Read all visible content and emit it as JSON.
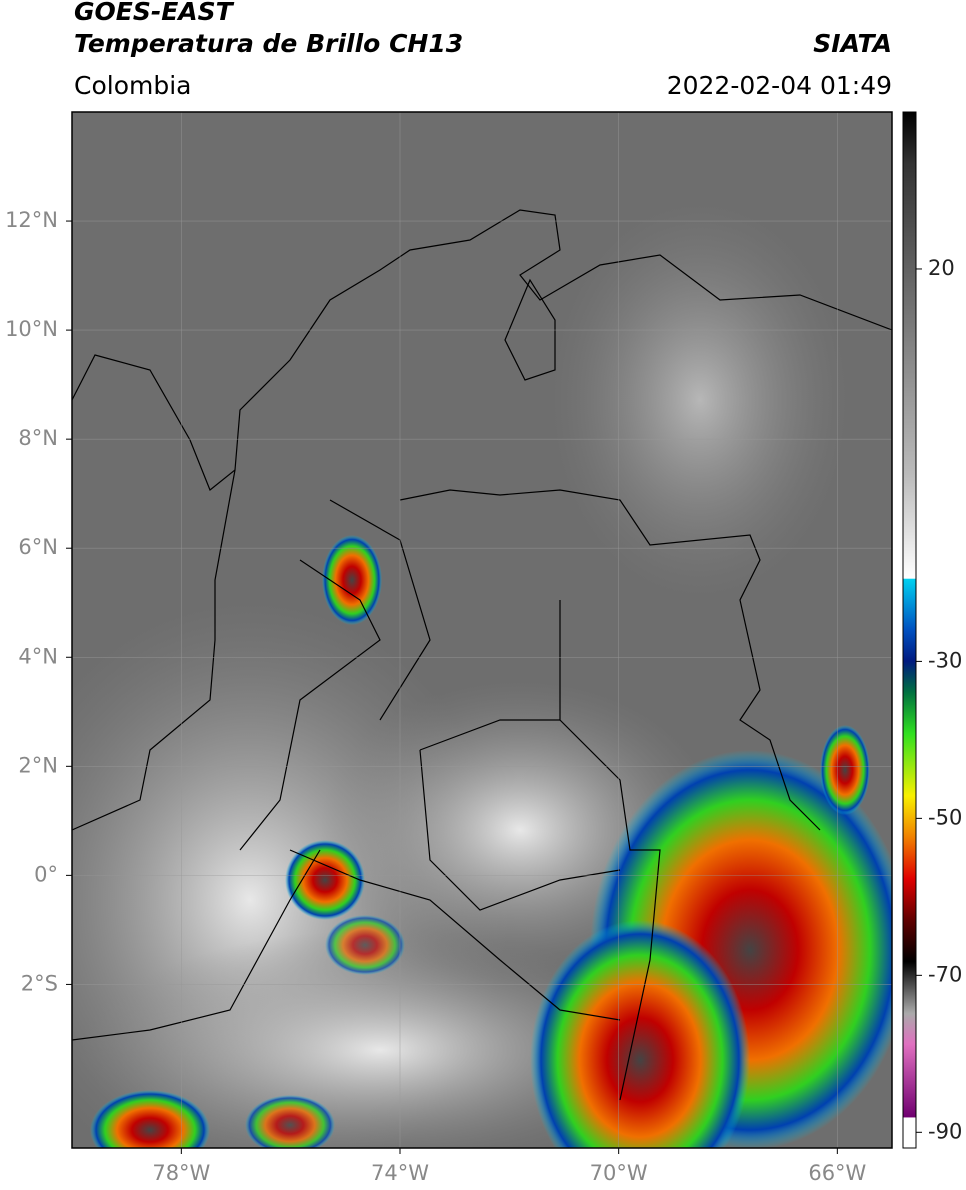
{
  "map": {
    "title": "GOES-EAST",
    "subtitle": "Temperatura de Brillo CH13",
    "region": "Colombia",
    "source": "SIATA",
    "timestamp": "2022-02-04 01:49",
    "lat_lim": [
      -5,
      14
    ],
    "lat_ticks": [
      {
        "value": 12,
        "label": "12°N"
      },
      {
        "value": 10,
        "label": "10°N"
      },
      {
        "value": 8,
        "label": "8°N"
      },
      {
        "value": 6,
        "label": "6°N"
      },
      {
        "value": 4,
        "label": "4°N"
      },
      {
        "value": 2,
        "label": "2°N"
      },
      {
        "value": 0,
        "label": "0°"
      },
      {
        "value": -2,
        "label": "2°S"
      }
    ],
    "lon_lim": [
      -80,
      -65
    ],
    "lon_ticks": [
      {
        "value": -78,
        "label": "78°W"
      },
      {
        "value": -74,
        "label": "74°W"
      },
      {
        "value": -70,
        "label": "70°W"
      },
      {
        "value": -66,
        "label": "66°W"
      }
    ],
    "colorbar": {
      "lim": [
        -92,
        40
      ],
      "ticks": [
        20,
        -30,
        -50,
        -70,
        -90
      ]
    }
  }
}
